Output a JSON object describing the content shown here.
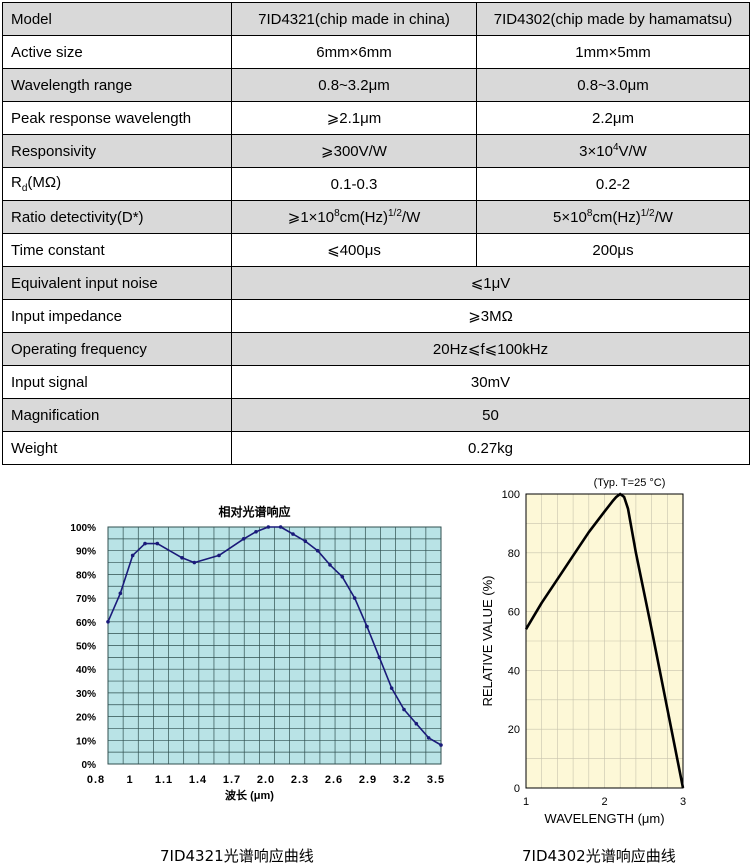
{
  "spec_table": {
    "header": {
      "label": "Model",
      "col1": "7ID4321(chip made in china)",
      "col2": "7ID4302(chip made by hamamatsu)"
    },
    "active_size": {
      "label": "Active size",
      "col1": "6mm×6mm",
      "col2": "1mm×5mm"
    },
    "wavelength_range": {
      "label": "Wavelength range",
      "col1": "0.8~3.2μm",
      "col2": "0.8~3.0μm"
    },
    "peak_response": {
      "label": "Peak response wavelength",
      "col1": "⩾2.1μm",
      "col2": "2.2μm"
    },
    "responsivity": {
      "label": "Responsivity",
      "col1": "⩾300V/W",
      "col2_pre": "3×10",
      "col2_sup": "4",
      "col2_post": "V/W"
    },
    "rd": {
      "label_pre": "R",
      "label_sub": "d",
      "label_post": "(MΩ)",
      "col1": "0.1-0.3",
      "col2": "0.2-2"
    },
    "detectivity": {
      "label": "Ratio detectivity(D*)",
      "col1_pre": "⩾1×10",
      "col1_sup1": "8",
      "col1_mid": "cm(Hz)",
      "col1_sup2": "1/2",
      "col1_post": "/W",
      "col2_pre": "5×10",
      "col2_sup1": "8",
      "col2_mid": "cm(Hz)",
      "col2_sup2": "1/2",
      "col2_post": "/W"
    },
    "time_constant": {
      "label": "Time constant",
      "col1": "⩽400μs",
      "col2": "200μs"
    },
    "equivalent_noise": {
      "label": "Equivalent input noise",
      "value": "⩽1μV"
    },
    "input_impedance": {
      "label": "Input impedance",
      "value": "⩾3MΩ"
    },
    "operating_frequency": {
      "label": "Operating frequency",
      "value": "20Hz⩽f⩽100kHz"
    },
    "input_signal": {
      "label": "Input signal",
      "value": "30mV"
    },
    "magnification": {
      "label": "Magnification",
      "value": "50"
    },
    "weight": {
      "label": "Weight",
      "value": "0.27kg"
    }
  },
  "captions": {
    "left": "7ID4321光谱响应曲线",
    "right": "7ID4302光谱响应曲线"
  },
  "chart_data": [
    {
      "type": "line",
      "title": "相对光谱响应",
      "xlabel": "波长 (μm)",
      "ylabel": "",
      "xlim": [
        0.8,
        3.5
      ],
      "ylim": [
        0,
        100
      ],
      "xticks": [
        "0.8",
        "1",
        "1.1",
        "1.4",
        "1.7",
        "2.0",
        "2.3",
        "2.6",
        "2.9",
        "3.2",
        "3.5"
      ],
      "yticks": [
        "0%",
        "10%",
        "20%",
        "30%",
        "40%",
        "50%",
        "60%",
        "70%",
        "80%",
        "90%",
        "100%"
      ],
      "grid": true,
      "colors": {
        "background": "#b9e3e6",
        "grid": "#2f4f4f",
        "line": "#1a1a7a"
      },
      "series": [
        {
          "x": [
            0.8,
            0.9,
            1.0,
            1.1,
            1.2,
            1.4,
            1.5,
            1.7,
            1.9,
            2.0,
            2.1,
            2.2,
            2.3,
            2.4,
            2.5,
            2.6,
            2.7,
            2.8,
            2.9,
            3.0,
            3.1,
            3.2,
            3.3,
            3.4,
            3.5
          ],
          "y": [
            60,
            72,
            88,
            93,
            93,
            87,
            85,
            88,
            95,
            98,
            100,
            100,
            97,
            94,
            90,
            84,
            79,
            70,
            58,
            45,
            32,
            23,
            17,
            11,
            8
          ]
        }
      ]
    },
    {
      "type": "line",
      "title": "",
      "annotation": "(Typ. T=25 °C)",
      "xlabel": "WAVELENGTH (μm)",
      "ylabel": "RELATIVE VALUE (%)",
      "xlim": [
        1,
        3
      ],
      "ylim": [
        0,
        100
      ],
      "xticks": [
        "1",
        "2",
        "3"
      ],
      "yticks": [
        "0",
        "20",
        "40",
        "60",
        "80",
        "100"
      ],
      "grid": true,
      "colors": {
        "background": "#fdf8d7",
        "grid": "#c7c3ae",
        "line": "#000000"
      },
      "series": [
        {
          "x": [
            1.0,
            1.2,
            1.4,
            1.6,
            1.8,
            2.0,
            2.1,
            2.15,
            2.2,
            2.25,
            2.3,
            2.4,
            2.6,
            2.8,
            3.0
          ],
          "y": [
            54,
            63,
            71,
            79,
            87,
            94,
            97.5,
            99,
            100,
            99,
            95,
            80,
            54,
            27,
            0
          ]
        }
      ]
    }
  ]
}
